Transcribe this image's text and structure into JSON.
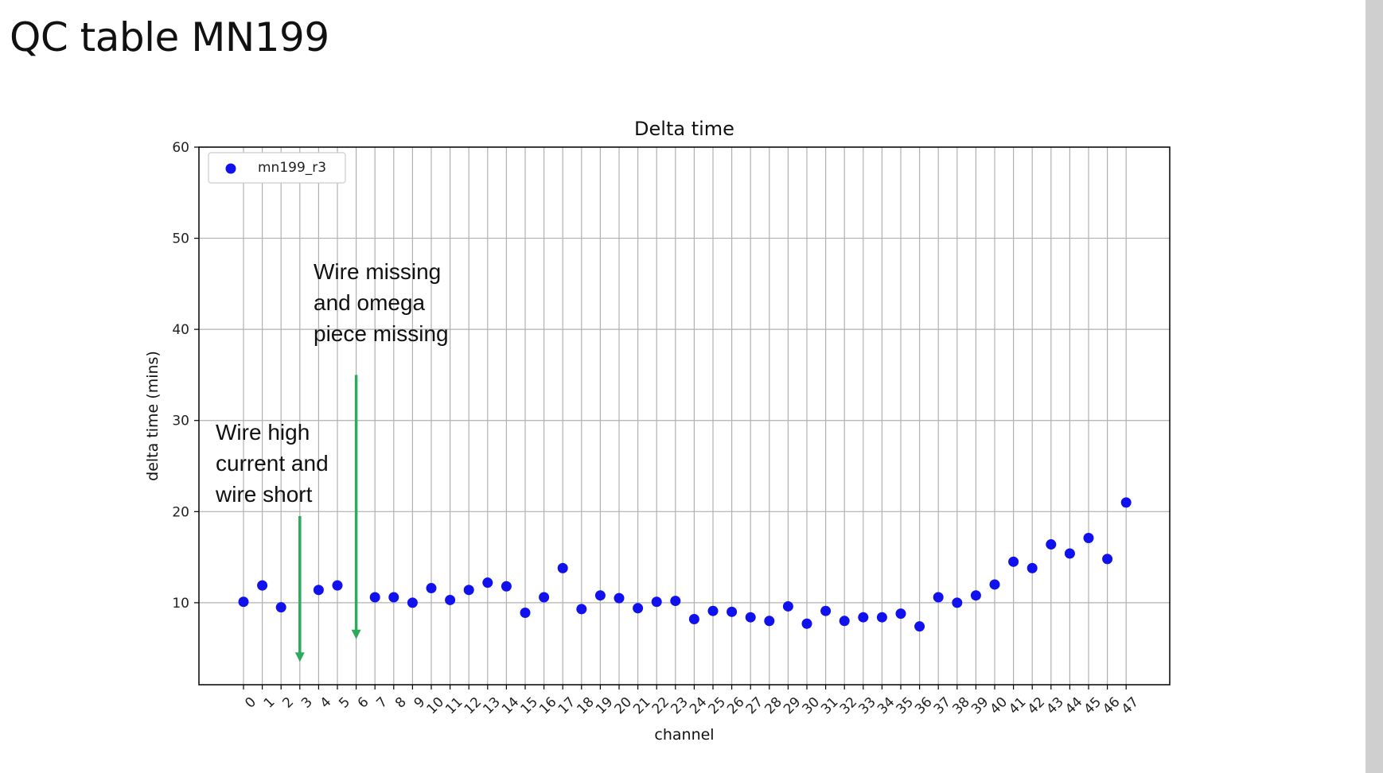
{
  "slide": {
    "title": "QC table MN199"
  },
  "chart_data": {
    "type": "scatter",
    "title": "Delta time",
    "xlabel": "channel",
    "ylabel": "delta time (mins)",
    "ylim": [
      1,
      60
    ],
    "yticks": [
      10,
      20,
      30,
      40,
      50,
      60
    ],
    "grid": true,
    "legend_position": "upper-left",
    "colors": {
      "series": "#1111ee",
      "arrow": "#2eaa5c",
      "grid": "#b0b0b0"
    },
    "x": [
      0,
      1,
      2,
      3,
      4,
      5,
      6,
      7,
      8,
      9,
      10,
      11,
      12,
      13,
      14,
      15,
      16,
      17,
      18,
      19,
      20,
      21,
      22,
      23,
      24,
      25,
      26,
      27,
      28,
      29,
      30,
      31,
      32,
      33,
      34,
      35,
      36,
      37,
      38,
      39,
      40,
      41,
      42,
      43,
      44,
      45,
      46,
      47
    ],
    "xtick_labels": [
      "0",
      "1",
      "2",
      "3",
      "4",
      "5",
      "6",
      "7",
      "8",
      "9",
      "10",
      "11",
      "12",
      "13",
      "14",
      "15",
      "16",
      "17",
      "18",
      "19",
      "20",
      "21",
      "22",
      "23",
      "24",
      "25",
      "26",
      "27",
      "28",
      "29",
      "30",
      "31",
      "32",
      "33",
      "34",
      "35",
      "36",
      "37",
      "38",
      "39",
      "40",
      "41",
      "42",
      "43",
      "44",
      "45",
      "46",
      "47"
    ],
    "series": [
      {
        "name": "mn199_r3",
        "points": [
          [
            0,
            10.1
          ],
          [
            1,
            11.9
          ],
          [
            2,
            9.5
          ],
          [
            4,
            11.4
          ],
          [
            5,
            11.9
          ],
          [
            7,
            10.6
          ],
          [
            8,
            10.6
          ],
          [
            9,
            10.0
          ],
          [
            10,
            11.6
          ],
          [
            11,
            10.3
          ],
          [
            12,
            11.4
          ],
          [
            13,
            12.2
          ],
          [
            14,
            11.8
          ],
          [
            15,
            8.9
          ],
          [
            16,
            10.6
          ],
          [
            17,
            13.8
          ],
          [
            18,
            9.3
          ],
          [
            19,
            10.8
          ],
          [
            20,
            10.5
          ],
          [
            21,
            9.4
          ],
          [
            22,
            10.1
          ],
          [
            23,
            10.2
          ],
          [
            24,
            8.2
          ],
          [
            25,
            9.1
          ],
          [
            26,
            9.0
          ],
          [
            27,
            8.4
          ],
          [
            28,
            8.0
          ],
          [
            29,
            9.6
          ],
          [
            30,
            7.7
          ],
          [
            31,
            9.1
          ],
          [
            32,
            8.0
          ],
          [
            33,
            8.4
          ],
          [
            34,
            8.4
          ],
          [
            35,
            8.8
          ],
          [
            36,
            7.4
          ],
          [
            37,
            10.6
          ],
          [
            38,
            10.0
          ],
          [
            39,
            10.8
          ],
          [
            40,
            12.0
          ],
          [
            41,
            14.5
          ],
          [
            42,
            13.8
          ],
          [
            43,
            16.4
          ],
          [
            44,
            15.4
          ],
          [
            45,
            17.1
          ],
          [
            46,
            14.8
          ],
          [
            47,
            21.0
          ]
        ]
      }
    ],
    "annotations": [
      {
        "id": "ch3",
        "lines": [
          "Wire high",
          "current and",
          "wire short"
        ],
        "arrow_x": 3,
        "arrow_y_from": 19.5,
        "arrow_y_to": 3.5
      },
      {
        "id": "ch6",
        "lines": [
          "Wire missing",
          "and omega",
          "piece missing"
        ],
        "arrow_x": 6,
        "arrow_y_from": 35,
        "arrow_y_to": 6
      }
    ]
  }
}
